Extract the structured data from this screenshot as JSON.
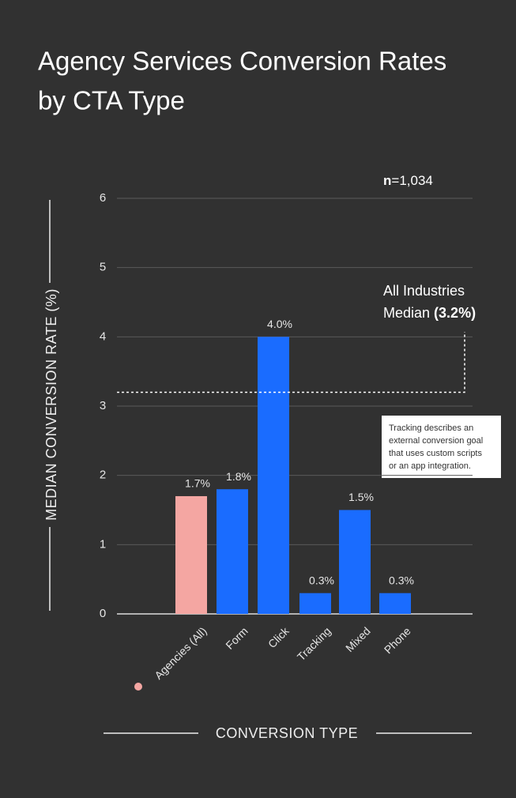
{
  "chart_data": {
    "type": "bar",
    "title_lines": [
      "Agency Services Conversion Rates",
      "by CTA Type"
    ],
    "ylabel": "MEDIAN CONVERSION RATE (%)",
    "xlabel": "CONVERSION TYPE",
    "categories": [
      "Agencies (All)",
      "Form",
      "Click",
      "Tracking",
      "Mixed",
      "Phone"
    ],
    "values": [
      1.7,
      1.8,
      4.0,
      0.3,
      1.5,
      0.3
    ],
    "value_labels": [
      "1.7%",
      "1.8%",
      "4.0%",
      "0.3%",
      "1.5%",
      "0.3%"
    ],
    "colors": [
      "#f4a6a2",
      "#1a6cff",
      "#1a6cff",
      "#1a6cff",
      "#1a6cff",
      "#1a6cff"
    ],
    "ylim": [
      0,
      6
    ],
    "yticks": [
      0,
      1,
      2,
      3,
      4,
      5,
      6
    ],
    "grid": true,
    "sample_note": [
      "n",
      "=1,034"
    ],
    "median": {
      "lines": [
        "All Industries",
        "Median"
      ],
      "value": 3.2,
      "label": "(3.2%)"
    },
    "note_lines": [
      "Tracking describes an",
      "external conversion goal",
      "that uses custom scripts",
      "or an app integration."
    ]
  }
}
